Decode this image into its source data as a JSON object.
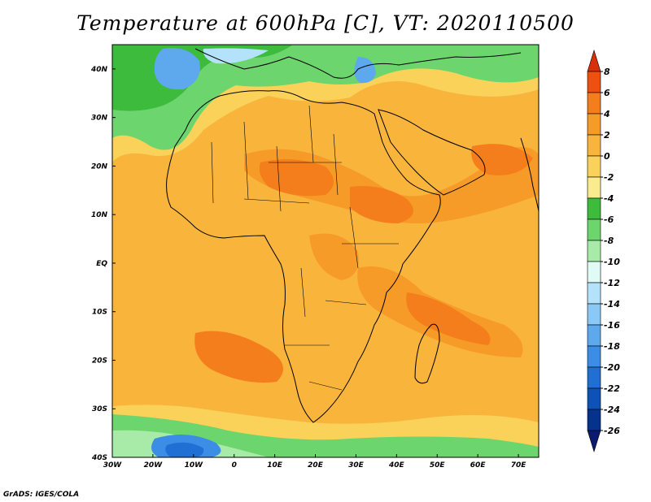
{
  "title": "Temperature at 600hPa [C], VT: 2020110500",
  "credit": "GrADS: IGES/COLA",
  "map": {
    "region": "Africa",
    "variable": "Temperature at 600hPa",
    "units": "C",
    "valid_time": "2020110500",
    "lon_range": [
      -30,
      75
    ],
    "lat_range": [
      -40,
      45
    ],
    "x_tick_labels": [
      "30W",
      "20W",
      "10W",
      "0",
      "10E",
      "20E",
      "30E",
      "40E",
      "50E",
      "60E",
      "70E"
    ],
    "x_tick_values": [
      -30,
      -20,
      -10,
      0,
      10,
      20,
      30,
      40,
      50,
      60,
      70
    ],
    "y_tick_labels": [
      "40N",
      "30N",
      "20N",
      "10N",
      "EQ",
      "10S",
      "20S",
      "30S",
      "40S"
    ],
    "y_tick_values": [
      40,
      30,
      20,
      10,
      0,
      -10,
      -20,
      -30,
      -40
    ]
  },
  "colorbar": {
    "labels": [
      "8",
      "6",
      "4",
      "2",
      "0",
      "-2",
      "-4",
      "-6",
      "-8",
      "-10",
      "-12",
      "-14",
      "-16",
      "-18",
      "-20",
      "-22",
      "-24",
      "-26"
    ],
    "colors": [
      "#d7300b",
      "#f0500f",
      "#f57e1c",
      "#f79b28",
      "#f9b43c",
      "#fad25a",
      "#fbeb8f",
      "#3dbb3d",
      "#6dd56d",
      "#a8eba8",
      "#e0fbf5",
      "#b4e2fb",
      "#8ac8f5",
      "#5ea8ee",
      "#3c8de6",
      "#1f6fd4",
      "#0d52b8",
      "#05328c",
      "#0b1a6e"
    ]
  }
}
